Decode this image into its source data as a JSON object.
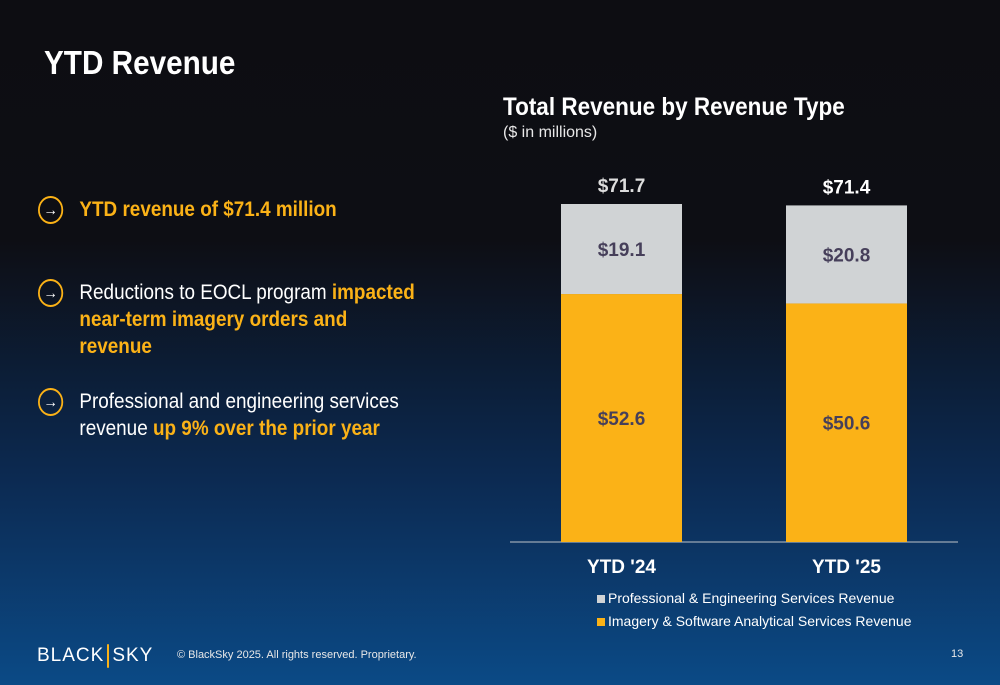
{
  "title": "YTD Revenue",
  "bullets": [
    {
      "plain": "",
      "highlight": "YTD revenue of $71.4 million",
      "after": ""
    },
    {
      "plain": "Reductions to EOCL program ",
      "highlight": "impacted near-term imagery orders and revenue",
      "after": ""
    },
    {
      "plain": "Professional and engineering services revenue ",
      "highlight": "up 9% over the prior year",
      "after": ""
    }
  ],
  "chart_data": {
    "type": "bar",
    "stacked": true,
    "title": "Total Revenue by Revenue Type",
    "subtitle": "($ in millions)",
    "categories": [
      "YTD '24",
      "YTD '25"
    ],
    "series": [
      {
        "name": "Imagery & Software Analytical Services Revenue",
        "values": [
          52.6,
          50.6
        ],
        "labels": [
          "$52.6",
          "$50.6"
        ],
        "color": "#fbb217"
      },
      {
        "name": "Professional & Engineering Services Revenue",
        "values": [
          19.1,
          20.8
        ],
        "labels": [
          "$19.1",
          "$20.8"
        ],
        "color": "#d0d3d5"
      }
    ],
    "totals": [
      "$71.7",
      "$71.4"
    ],
    "ylim": [
      0,
      75
    ],
    "grid": false,
    "legend": "bottom"
  },
  "footer": {
    "logo": "BLACKSKY",
    "logo_left": "BLACK",
    "logo_right": "SKY",
    "copyright": "© BlackSky 2025. All rights reserved. Proprietary.",
    "page": "13"
  }
}
